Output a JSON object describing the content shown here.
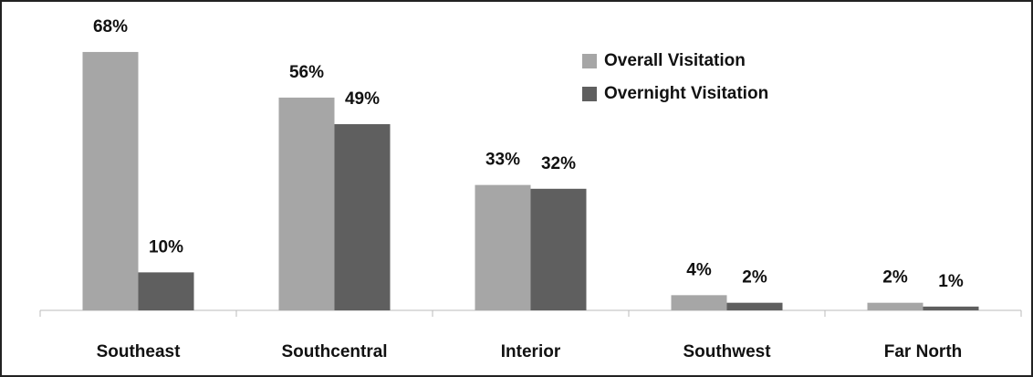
{
  "chart_data": {
    "type": "bar",
    "categories": [
      "Southeast",
      "Southcentral",
      "Interior",
      "Southwest",
      "Far North"
    ],
    "series": [
      {
        "name": "Overall Visitation",
        "color": "#a6a6a6",
        "values": [
          68,
          56,
          33,
          4,
          2
        ],
        "value_labels": [
          "68%",
          "56%",
          "33%",
          "4%",
          "2%"
        ]
      },
      {
        "name": "Overnight Visitation",
        "color": "#5f5f5f",
        "values": [
          10,
          49,
          32,
          2,
          1
        ],
        "value_labels": [
          "10%",
          "49%",
          "32%",
          "2%",
          "1%"
        ]
      }
    ],
    "ylim": [
      0,
      80
    ],
    "legend": "top-right"
  }
}
